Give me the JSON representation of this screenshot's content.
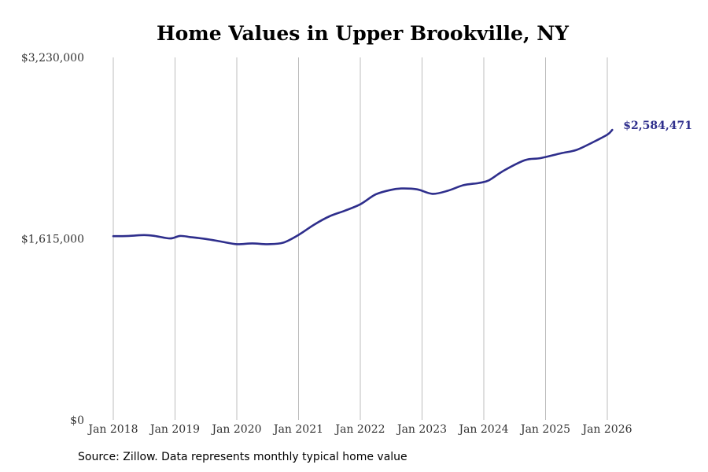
{
  "chart_data": {
    "type": "line",
    "title": "Home Values in Upper Brookville, NY",
    "xlabel": "",
    "ylabel": "",
    "ylim": [
      0,
      3230000
    ],
    "y_ticks": [
      {
        "value": 0,
        "label": "$0"
      },
      {
        "value": 1615000,
        "label": "$1,615,000"
      },
      {
        "value": 3230000,
        "label": "$3,230,000"
      }
    ],
    "x_ticks": [
      {
        "value": 2018.0,
        "label": "Jan 2018"
      },
      {
        "value": 2019.0,
        "label": "Jan 2019"
      },
      {
        "value": 2020.0,
        "label": "Jan 2020"
      },
      {
        "value": 2021.0,
        "label": "Jan 2021"
      },
      {
        "value": 2022.0,
        "label": "Jan 2022"
      },
      {
        "value": 2023.0,
        "label": "Jan 2023"
      },
      {
        "value": 2024.0,
        "label": "Jan 2024"
      },
      {
        "value": 2025.0,
        "label": "Jan 2025"
      },
      {
        "value": 2026.0,
        "label": "Jan 2026"
      }
    ],
    "xlim": [
      2017.7,
      2027.0
    ],
    "grid": "vertical",
    "series": [
      {
        "name": "Typical home value",
        "color": "#2e2e8c",
        "end_label": "$2,584,471",
        "x": [
          2018.0,
          2018.25,
          2018.5,
          2018.67,
          2018.92,
          2019.08,
          2019.25,
          2019.5,
          2019.75,
          2020.0,
          2020.25,
          2020.5,
          2020.75,
          2021.0,
          2021.25,
          2021.5,
          2021.75,
          2022.0,
          2022.25,
          2022.5,
          2022.67,
          2022.92,
          2023.17,
          2023.42,
          2023.67,
          2023.92,
          2024.08,
          2024.33,
          2024.67,
          2024.92,
          2025.25,
          2025.5,
          2025.75,
          2026.0,
          2026.08
        ],
        "values": [
          1638000,
          1640000,
          1648000,
          1640000,
          1618000,
          1640000,
          1630000,
          1613000,
          1590000,
          1567000,
          1574000,
          1567000,
          1580000,
          1649000,
          1740000,
          1815000,
          1865000,
          1922000,
          2010000,
          2051000,
          2063000,
          2055000,
          2015000,
          2043000,
          2092000,
          2112000,
          2135000,
          2224000,
          2316000,
          2333000,
          2376000,
          2406000,
          2470000,
          2542000,
          2584471
        ]
      }
    ]
  },
  "footer": {
    "source": "Source: Zillow. Data represents monthly typical home value"
  }
}
